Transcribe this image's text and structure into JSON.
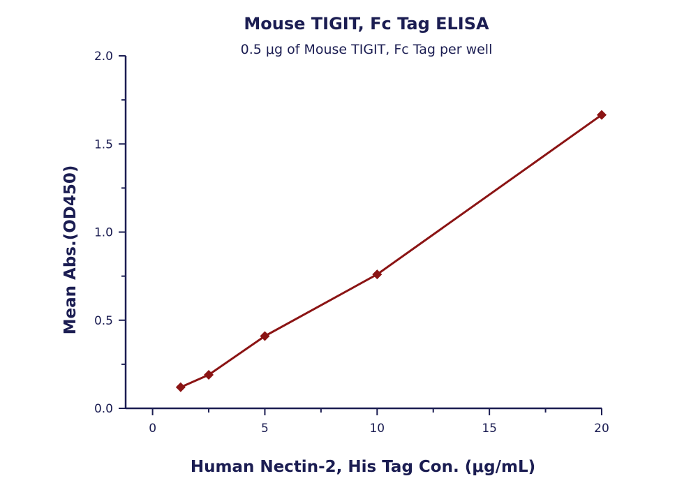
{
  "chart_data": {
    "type": "line",
    "title": "Mouse TIGIT, Fc Tag ELISA",
    "subtitle": "0.5 μg of Mouse TIGIT, Fc Tag per well",
    "xlabel": "Human Nectin-2, His Tag Con. (μg/mL)",
    "ylabel": "Mean Abs.(OD450)",
    "xlim": [
      -1.2,
      20
    ],
    "ylim": [
      0,
      2.0
    ],
    "x_ticks": [
      0,
      5,
      10,
      15,
      20
    ],
    "x_tick_labels": [
      "0",
      "5",
      "10",
      "15",
      "20"
    ],
    "y_ticks": [
      0.0,
      0.5,
      1.0,
      1.5,
      2.0
    ],
    "y_tick_labels": [
      "0.0",
      "0.5",
      "1.0",
      "1.5",
      "2.0"
    ],
    "grid": false,
    "legend": "none",
    "series": [
      {
        "x": [
          1.25,
          2.5,
          5,
          10,
          20
        ],
        "values": [
          0.12,
          0.19,
          0.41,
          0.76,
          1.665
        ],
        "color": "#8b1414",
        "marker": "diamond"
      }
    ]
  }
}
